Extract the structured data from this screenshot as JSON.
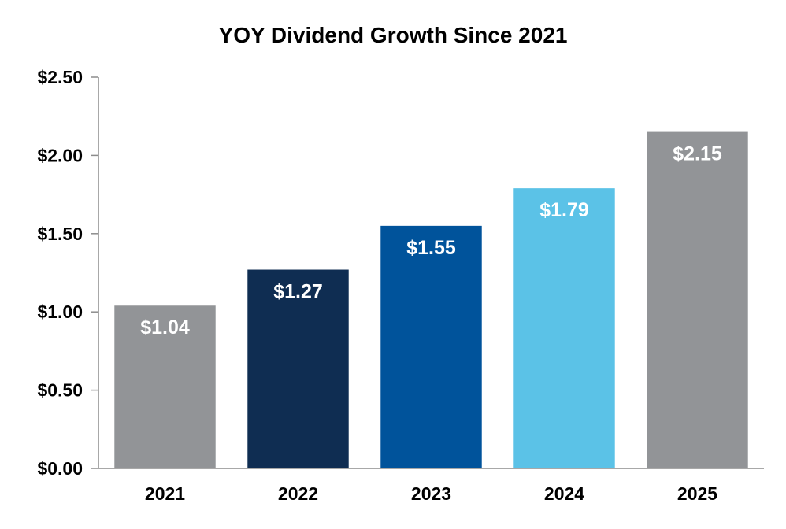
{
  "chart_data": {
    "type": "bar",
    "title": "YOY Dividend Growth Since 2021",
    "xlabel": "",
    "ylabel": "",
    "categories": [
      "2021",
      "2022",
      "2023",
      "2024",
      "2025"
    ],
    "values": [
      1.04,
      1.27,
      1.55,
      1.79,
      2.15
    ],
    "data_labels": [
      "$1.04",
      "$1.27",
      "$1.55",
      "$1.79",
      "$2.15"
    ],
    "bar_colors": [
      "#929497",
      "#0f2d52",
      "#00539b",
      "#5bc2e7",
      "#929497"
    ],
    "ylim": [
      0,
      2.5
    ],
    "yticks": [
      0,
      0.5,
      1.0,
      1.5,
      2.0,
      2.5
    ],
    "ytick_labels": [
      "$0.00",
      "$0.50",
      "$1.00",
      "$1.50",
      "$2.00",
      "$2.50"
    ],
    "grid": false,
    "legend": "none"
  }
}
